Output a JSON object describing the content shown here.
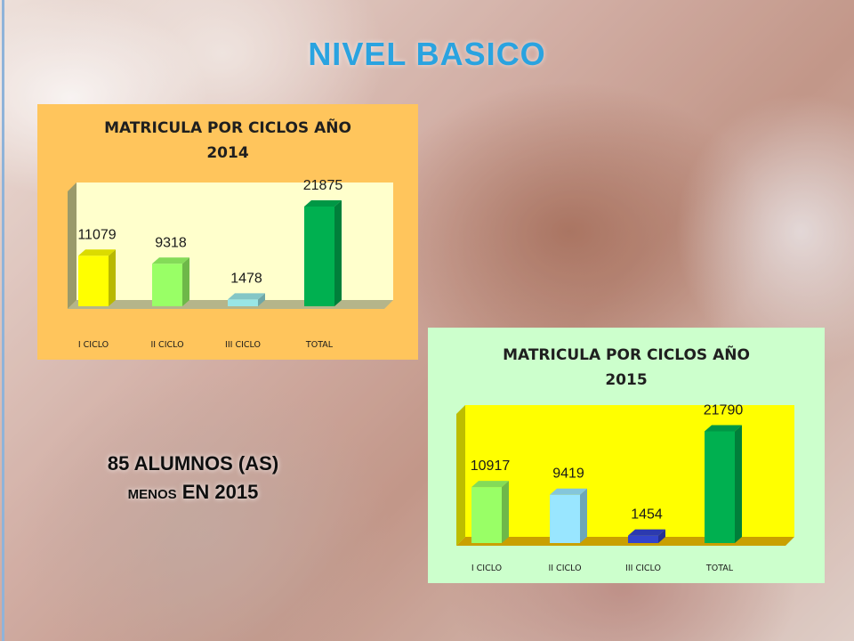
{
  "page": {
    "title": "NIVEL BASICO",
    "note": {
      "line1": "85 ALUMNOS (AS)",
      "line2_small": "MENOS",
      "line2_rest": " EN 2015"
    }
  },
  "chart_data": [
    {
      "type": "bar",
      "title_line1": "MATRICULA POR CICLOS AÑO",
      "title_line2": "2014",
      "categories": [
        "I CICLO",
        "II CICLO",
        "III CICLO",
        "TOTAL"
      ],
      "values": [
        11079,
        9318,
        1478,
        21875
      ],
      "value_labels": [
        "11079",
        "9318",
        "1478",
        "21875"
      ],
      "ylim": [
        0,
        25000
      ],
      "grid": false,
      "colors": {
        "panel_bg": "#ffc55c",
        "plot_bg": "#ffffcc",
        "wall": "#9a9a6a",
        "floor": "#b5b58a",
        "bars": [
          "#ffff00",
          "#99ff66",
          "#99e6e6",
          "#00b050"
        ]
      }
    },
    {
      "type": "bar",
      "title_line1": "MATRICULA POR CICLOS AÑO",
      "title_line2": "2015",
      "categories": [
        "I CICLO",
        "II CICLO",
        "III CICLO",
        "TOTAL"
      ],
      "values": [
        10917,
        9419,
        1454,
        21790
      ],
      "value_labels": [
        "10917",
        "9419",
        "1454",
        "21790"
      ],
      "ylim": [
        0,
        25000
      ],
      "grid": false,
      "colors": {
        "panel_bg": "#ccffcc",
        "plot_bg": "#ffff00",
        "wall": "#bdbd00",
        "floor": "#c9a000",
        "bars": [
          "#99ff66",
          "#99e6ff",
          "#3344cc",
          "#00b050"
        ]
      }
    }
  ]
}
